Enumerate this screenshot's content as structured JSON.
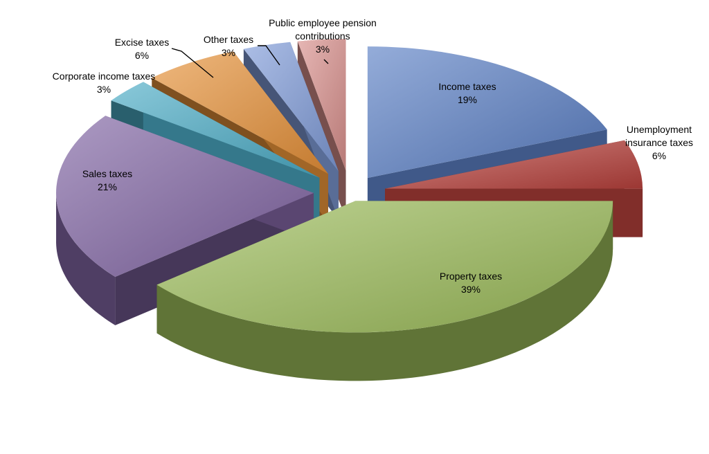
{
  "chart_data": {
    "type": "pie",
    "style": "3d exploded pie",
    "slices": [
      {
        "label": "Income taxes",
        "pct_label": "19%",
        "value": 19,
        "color": "#5b7fc4"
      },
      {
        "label": "Unemployment insurance taxes",
        "pct_label": "6%",
        "value": 6,
        "color": "#b8413c"
      },
      {
        "label": "Property taxes",
        "pct_label": "39%",
        "value": 39,
        "color": "#9bbb59"
      },
      {
        "label": "Sales taxes",
        "pct_label": "21%",
        "value": 21,
        "color": "#8064a2"
      },
      {
        "label": "Corporate income taxes",
        "pct_label": "3%",
        "value": 3,
        "color": "#4bacc6"
      },
      {
        "label": "Excise taxes",
        "pct_label": "6%",
        "value": 6,
        "color": "#e69138"
      },
      {
        "label": "Other taxes",
        "pct_label": "3%",
        "value": 3,
        "color": "#7f9bd8"
      },
      {
        "label": "Public employee pension contributions",
        "pct_label": "3%",
        "value": 3,
        "color": "#d98f8c"
      }
    ],
    "legend": "none"
  }
}
